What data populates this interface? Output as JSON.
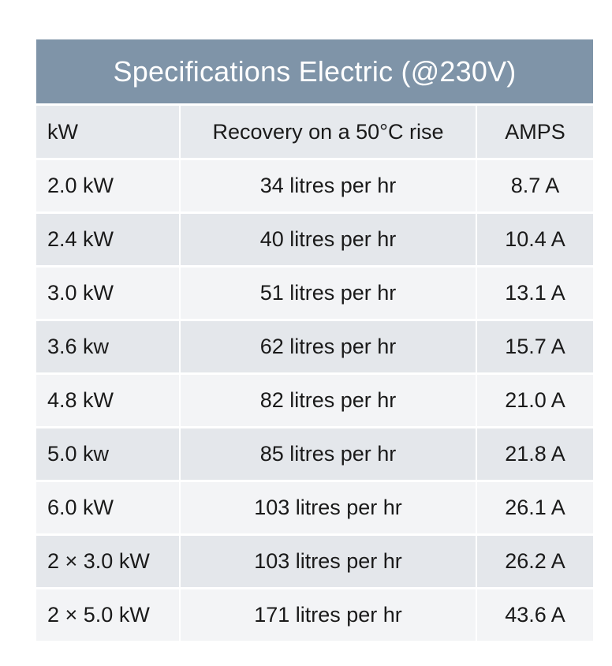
{
  "table": {
    "title": "Specifications Electric (@230V)",
    "headers": [
      "kW",
      "Recovery on a 50°C rise",
      "AMPS"
    ],
    "rows": [
      {
        "kw": "2.0 kW",
        "recovery": "34 litres per hr",
        "amps": "8.7 A"
      },
      {
        "kw": "2.4 kW",
        "recovery": "40 litres per hr",
        "amps": "10.4 A"
      },
      {
        "kw": "3.0 kW",
        "recovery": "51 litres per hr",
        "amps": "13.1 A"
      },
      {
        "kw": "3.6 kw",
        "recovery": "62 litres per hr",
        "amps": "15.7 A"
      },
      {
        "kw": "4.8 kW",
        "recovery": "82 litres per hr",
        "amps": "21.0 A"
      },
      {
        "kw": "5.0 kw",
        "recovery": "85 litres per hr",
        "amps": "21.8 A"
      },
      {
        "kw": "6.0 kW",
        "recovery": "103 litres per hr",
        "amps": "26.1 A"
      },
      {
        "kw": "2 × 3.0 kW",
        "recovery": "103 litres per hr",
        "amps": "26.2 A"
      },
      {
        "kw": "2 × 5.0 kW",
        "recovery": "171 litres per hr",
        "amps": "43.6 A"
      }
    ]
  },
  "colors": {
    "title_background": "#7f94a8",
    "title_text": "#ffffff",
    "row_light": "#f3f4f6",
    "row_dark": "#e4e7eb"
  }
}
